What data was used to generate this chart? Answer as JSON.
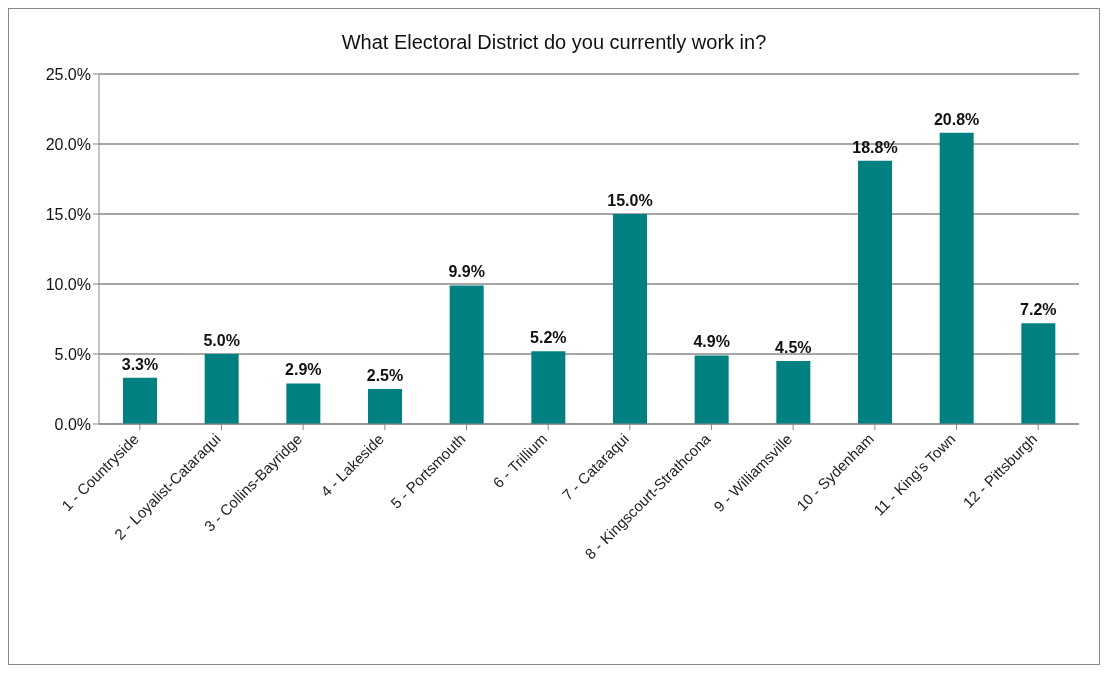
{
  "chart_data": {
    "type": "bar",
    "title": "What Electoral District do you currently work in?",
    "categories": [
      "1 - Countryside",
      "2 - Loyalist-Cataraqui",
      "3 - Collins-Bayridge",
      "4 - Lakeside",
      "5 - Portsmouth",
      "6 - Trillium",
      "7 - Cataraqui",
      "8 - Kingscourt-Strathcona",
      "9 - Williamsville",
      "10 - Sydenham",
      "11 - King's Town",
      "12 - Pittsburgh"
    ],
    "values": [
      3.3,
      5.0,
      2.9,
      2.5,
      9.9,
      5.2,
      15.0,
      4.9,
      4.5,
      18.8,
      20.8,
      7.2
    ],
    "value_labels": [
      "3.3%",
      "5.0%",
      "2.9%",
      "2.5%",
      "9.9%",
      "5.2%",
      "15.0%",
      "4.9%",
      "4.5%",
      "18.8%",
      "20.8%",
      "7.2%"
    ],
    "color": "#008080",
    "ylim": [
      0,
      25
    ],
    "yticks": [
      {
        "value": 0,
        "label": "0.0%"
      },
      {
        "value": 5,
        "label": "5.0%"
      },
      {
        "value": 10,
        "label": "10.0%"
      },
      {
        "value": 15,
        "label": "15.0%"
      },
      {
        "value": 20,
        "label": "20.0%"
      },
      {
        "value": 25,
        "label": "25.0%"
      }
    ],
    "grid": "y"
  }
}
